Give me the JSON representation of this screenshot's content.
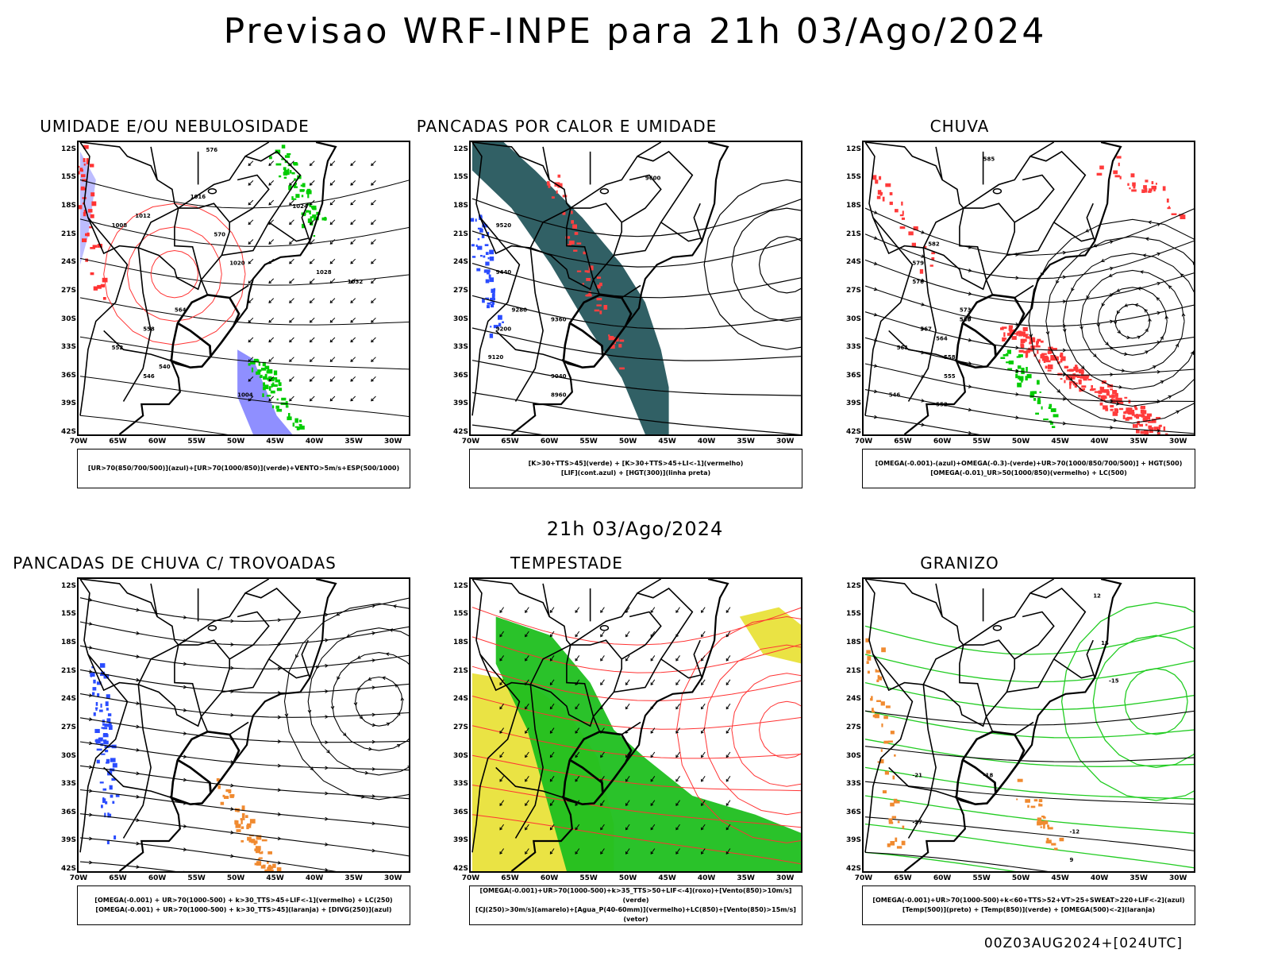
{
  "main_title": "Previsao WRF-INPE  para 21h 03/Ago/2024",
  "mid_title": "21h 03/Ago/2024",
  "footer": "00Z03AUG2024+[024UTC]",
  "lat_labels": [
    "12S",
    "15S",
    "18S",
    "21S",
    "24S",
    "27S",
    "30S",
    "33S",
    "36S",
    "39S",
    "42S"
  ],
  "lon_labels": [
    "70W",
    "65W",
    "60W",
    "55W",
    "50W",
    "45W",
    "40W",
    "35W",
    "30W"
  ],
  "colors": {
    "humidity_blue": "#7b7bff",
    "humidity_green": "#00cc00",
    "isoline_red": "#ff3333",
    "instability_teal": "#1f5358",
    "rain_red": "#ff3b3b",
    "storm_green": "#1fbf1f",
    "storm_yellow": "#e8e030",
    "hail_green": "#22cc22",
    "orange": "#f08a30",
    "blue": "#2a4cff"
  },
  "panels": [
    {
      "title": "UMIDADE E/OU NEBULOSIDADE",
      "legend": [
        "[UR>70(850/700/500)](azul)+[UR>70(1000/850)](verde)+VENTO>5m/s+ESP(500/1000)"
      ],
      "contour_labels": [
        "1016",
        "1012",
        "1008",
        "1020",
        "1024",
        "1028",
        "1032",
        "1004",
        "576",
        "570",
        "564",
        "558",
        "552",
        "546",
        "540"
      ]
    },
    {
      "title": "PANCADAS POR CALOR E UMIDADE",
      "legend": [
        "[K>30+TTS>45](verde) + [K>30+TTS>45+LI<-1](vermelho)",
        "[LIF](cont.azul) + [HGT(300)](linha preta)"
      ],
      "contour_labels": [
        "9600",
        "9520",
        "9440",
        "9360",
        "9280",
        "9200",
        "9120",
        "9040",
        "8960"
      ]
    },
    {
      "title": "CHUVA",
      "legend": [
        "[OMEGA(-0.001)-(azul)+OMEGA(-0.3)-(verde)+UR>70(1000/850/700/500)] + HGT(500)",
        "[OMEGA(-0.01)_UR>50(1000/850)(vermelho) + LC(500)"
      ],
      "contour_labels": [
        "585",
        "582",
        "579",
        "576",
        "573",
        "570",
        "567",
        "564",
        "561",
        "558",
        "555",
        "552",
        "549",
        "546"
      ]
    },
    {
      "title": "PANCADAS DE CHUVA C/ TROVOADAS",
      "legend": [
        "[OMEGA(-0.001) + UR>70(1000-500) + k>30_TTS>45+LIF<-1](vermelho) + LC(250)",
        "[OMEGA(-0.001) + UR>70(1000-500) + k>30_TTS>45](laranja) + [DIVG(250)](azul)"
      ],
      "contour_labels": []
    },
    {
      "title": "TEMPESTADE",
      "legend": [
        "[OMEGA(-0.001)+UR>70(1000-500)+k>35_TTS>50+LIF<-4](roxo)+[Vento(850)>10m/s](verde)",
        "[CJ(250)>30m/s](amarelo)+[Agua_P(40-60mm)](vermelho)+LC(850)+[Vento(850)>15m/s](vetor)"
      ],
      "contour_labels": []
    },
    {
      "title": "GRANIZO",
      "legend": [
        "[OMEGA(-0.001)+UR>70(1000-500)+k<60+TTS>52+VT>25+SWEAT>220+LIF<-2](azul)",
        "[Temp(500)](preto) + [Temp(850)](verde) + [OMEGA(500)<-2](laranja)"
      ],
      "contour_labels": [
        "-21",
        "-18",
        "-15",
        "-12",
        "9",
        "12",
        "15",
        "-27"
      ]
    }
  ]
}
